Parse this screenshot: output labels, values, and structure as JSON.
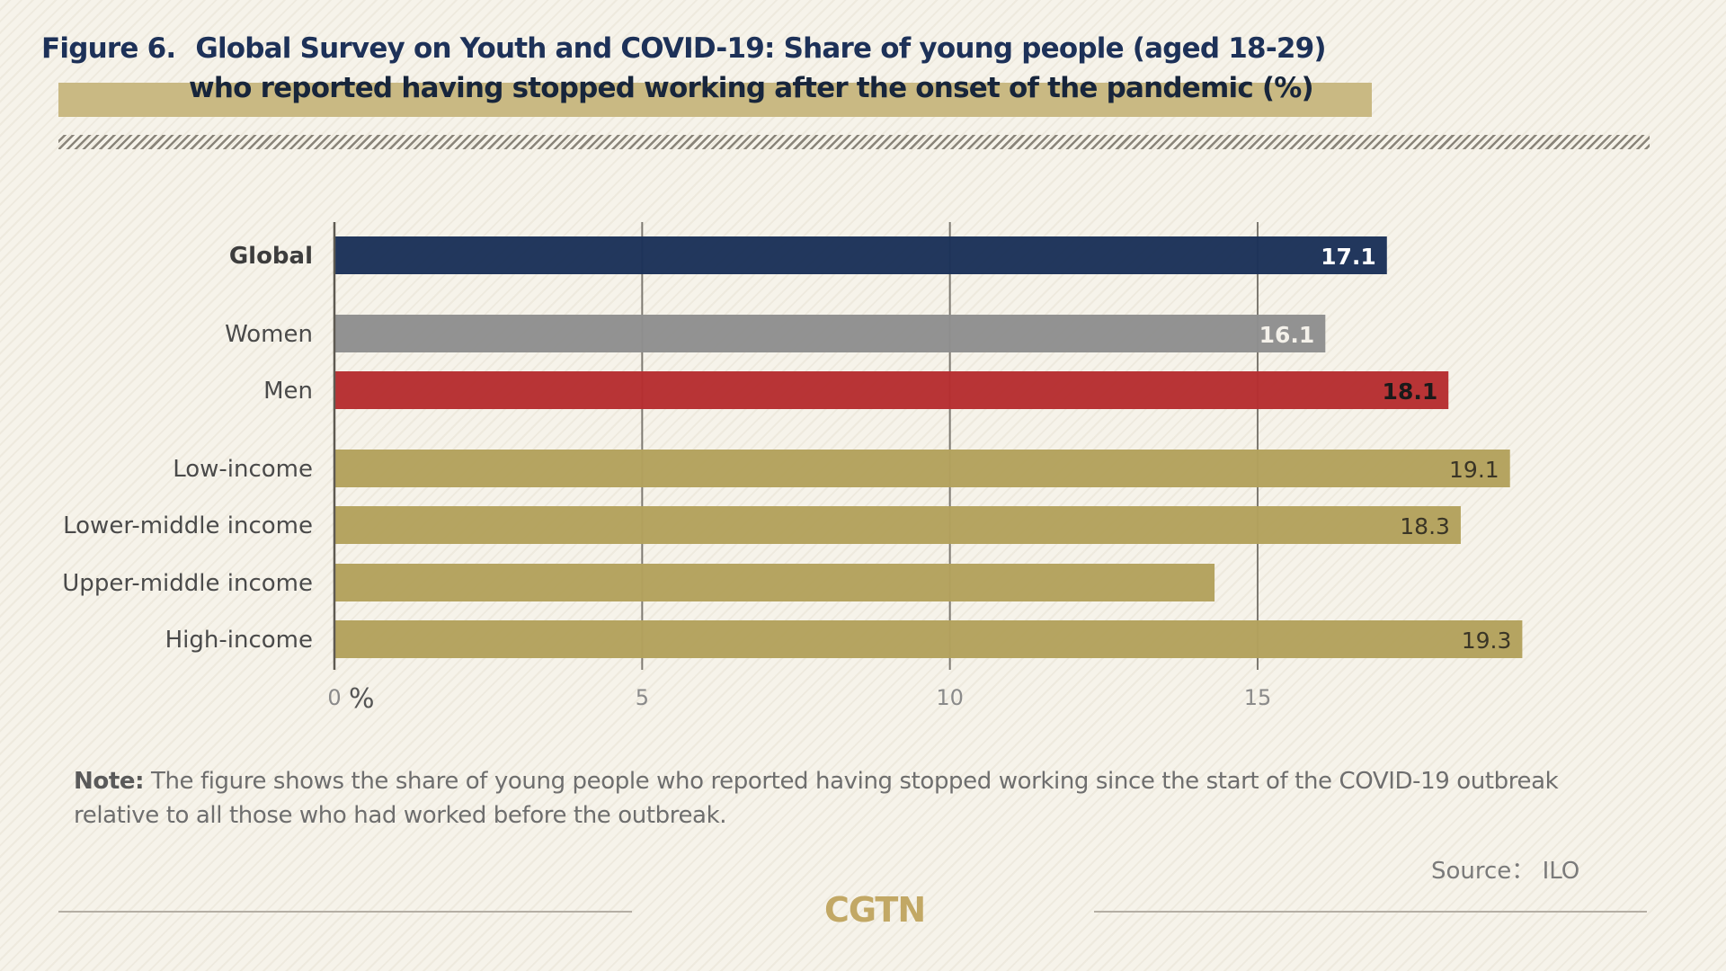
{
  "header": {
    "figure_label": "Figure 6.",
    "title_line1": "Global Survey on Youth and COVID-19: Share of young people (aged 18-29)",
    "title_line2": "who reported having stopped working after the onset of the pandemic (%)"
  },
  "chart_data": {
    "type": "bar",
    "orientation": "horizontal",
    "title": "Global Survey on Youth and COVID-19: Share of young people (aged 18-29) who reported having stopped working after the onset of the pandemic (%)",
    "xlabel": "%",
    "ylabel": "",
    "xlim": [
      0,
      20
    ],
    "grid": true,
    "xticks": [
      0,
      5,
      10,
      15
    ],
    "xtick_labels": [
      "0",
      "5",
      "10",
      "15"
    ],
    "unit_label": "%",
    "categories": [
      "Global",
      "Women",
      "Men",
      "Low-income",
      "Lower-middle income",
      "Upper-middle income",
      "High-income"
    ],
    "values": [
      17.1,
      16.1,
      18.1,
      19.1,
      18.3,
      14.3,
      19.3
    ],
    "value_labels": [
      "17.1",
      "16.1",
      "18.1",
      "19.1",
      "18.3",
      "",
      "19.3"
    ],
    "bar_colors": [
      "#1b3158",
      "#8e8e8e",
      "#b62d2f",
      "#b3a15c",
      "#b3a15c",
      "#b3a15c",
      "#b3a15c"
    ],
    "label_colors": [
      "#ffffff",
      "#f4f1ea",
      "#1a1a1a",
      "#3a3526",
      "#3a3526",
      "#3a3526",
      "#3a3526"
    ],
    "category_bold": [
      true,
      false,
      false,
      false,
      false,
      false,
      false
    ]
  },
  "footer": {
    "note_label": "Note:",
    "note_text": " The figure shows the share of young people who reported having stopped working since the start of the COVID-19 outbreak relative to all those who had worked before the outbreak.",
    "source": "Source： ILO",
    "logo": "CGTN"
  }
}
